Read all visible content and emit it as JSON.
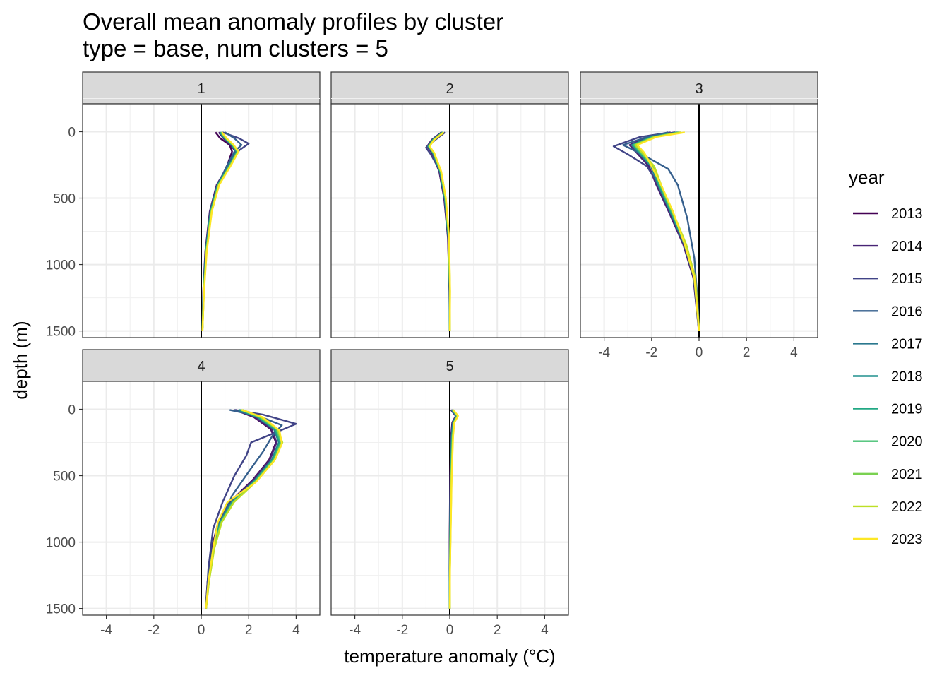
{
  "title": "Overall mean anomaly profiles by cluster",
  "subtitle": "type = base, num clusters = 5",
  "chart_data": {
    "type": "line",
    "title": "Overall mean anomaly profiles by cluster",
    "subtitle": "type = base, num clusters = 5",
    "xlabel": "temperature anomaly (°C)",
    "ylabel": "depth (m)",
    "xlim": [
      -5,
      5
    ],
    "ylim": [
      1550,
      -210
    ],
    "y_reversed": true,
    "x_ticks": [
      -4,
      -2,
      0,
      2,
      4
    ],
    "y_ticks": [
      0,
      500,
      1000,
      1500
    ],
    "grid": true,
    "reference_line_x": 0,
    "facets": [
      "1",
      "2",
      "3",
      "4",
      "5"
    ],
    "legend": {
      "title": "year",
      "position": "right",
      "items": [
        {
          "label": "2013",
          "color": "#440154"
        },
        {
          "label": "2014",
          "color": "#482475"
        },
        {
          "label": "2015",
          "color": "#414487"
        },
        {
          "label": "2016",
          "color": "#355f8d"
        },
        {
          "label": "2017",
          "color": "#2a788e"
        },
        {
          "label": "2018",
          "color": "#21908d"
        },
        {
          "label": "2019",
          "color": "#22a884"
        },
        {
          "label": "2020",
          "color": "#43bf71"
        },
        {
          "label": "2021",
          "color": "#7ad151"
        },
        {
          "label": "2022",
          "color": "#bddf26"
        },
        {
          "label": "2023",
          "color": "#fde725"
        }
      ]
    },
    "profiles": {
      "1": {
        "base": [
          [
            0.8,
            5
          ],
          [
            1.0,
            50
          ],
          [
            1.3,
            100
          ],
          [
            1.5,
            150
          ],
          [
            1.2,
            250
          ],
          [
            0.7,
            400
          ],
          [
            0.4,
            600
          ],
          [
            0.2,
            900
          ],
          [
            0.1,
            1200
          ],
          [
            0.05,
            1500
          ]
        ],
        "variants": {
          "2013": [
            [
              0.6,
              5
            ],
            [
              0.8,
              50
            ],
            [
              1.2,
              100
            ],
            [
              1.3,
              150
            ],
            [
              1.1,
              250
            ],
            [
              0.7,
              400
            ],
            [
              0.4,
              600
            ],
            [
              0.2,
              900
            ],
            [
              0.1,
              1200
            ],
            [
              0.05,
              1500
            ]
          ],
          "2015": [
            [
              0.9,
              5
            ],
            [
              1.6,
              50
            ],
            [
              2.0,
              90
            ],
            [
              1.6,
              140
            ],
            [
              1.2,
              250
            ],
            [
              0.7,
              400
            ],
            [
              0.4,
              600
            ],
            [
              0.2,
              900
            ],
            [
              0.1,
              1200
            ],
            [
              0.05,
              1500
            ]
          ],
          "2016": [
            [
              1.0,
              5
            ],
            [
              1.4,
              50
            ],
            [
              1.7,
              100
            ],
            [
              1.4,
              150
            ],
            [
              1.1,
              250
            ],
            [
              0.7,
              400
            ],
            [
              0.4,
              600
            ],
            [
              0.2,
              900
            ],
            [
              0.1,
              1200
            ],
            [
              0.05,
              1500
            ]
          ]
        }
      },
      "2": {
        "base": [
          [
            -0.3,
            5
          ],
          [
            -0.7,
            60
          ],
          [
            -0.9,
            110
          ],
          [
            -0.7,
            160
          ],
          [
            -0.4,
            300
          ],
          [
            -0.2,
            500
          ],
          [
            -0.05,
            800
          ],
          [
            0.0,
            1200
          ],
          [
            0.0,
            1500
          ]
        ],
        "variants": {
          "2015": [
            [
              -0.2,
              5
            ],
            [
              -0.6,
              60
            ],
            [
              -1.0,
              120
            ],
            [
              -0.8,
              170
            ],
            [
              -0.4,
              300
            ],
            [
              -0.2,
              500
            ],
            [
              -0.05,
              800
            ],
            [
              0.0,
              1200
            ],
            [
              0.0,
              1500
            ]
          ]
        }
      },
      "3": {
        "base": [
          [
            -0.9,
            5
          ],
          [
            -2.0,
            40
          ],
          [
            -2.8,
            100
          ],
          [
            -2.5,
            160
          ],
          [
            -2.0,
            260
          ],
          [
            -1.7,
            400
          ],
          [
            -1.2,
            600
          ],
          [
            -0.6,
            850
          ],
          [
            -0.2,
            1100
          ],
          [
            -0.05,
            1400
          ],
          [
            0.0,
            1500
          ]
        ],
        "variants": {
          "2013": [
            [
              -1.0,
              5
            ],
            [
              -2.1,
              40
            ],
            [
              -2.8,
              100
            ],
            [
              -2.5,
              160
            ],
            [
              -2.0,
              260
            ],
            [
              -1.6,
              450
            ],
            [
              -1.1,
              650
            ],
            [
              -0.6,
              850
            ],
            [
              -0.2,
              1100
            ],
            [
              -0.05,
              1400
            ],
            [
              0.0,
              1500
            ]
          ],
          "2015": [
            [
              -1.2,
              5
            ],
            [
              -2.5,
              40
            ],
            [
              -3.6,
              110
            ],
            [
              -3.0,
              170
            ],
            [
              -2.2,
              260
            ],
            [
              -1.7,
              400
            ],
            [
              -1.2,
              600
            ],
            [
              -0.6,
              850
            ],
            [
              -0.2,
              1100
            ],
            [
              -0.05,
              1400
            ],
            [
              0.0,
              1500
            ]
          ],
          "2016": [
            [
              -1.3,
              5
            ],
            [
              -2.2,
              40
            ],
            [
              -3.2,
              100
            ],
            [
              -2.4,
              170
            ],
            [
              -1.8,
              230
            ],
            [
              -1.3,
              280
            ],
            [
              -0.9,
              400
            ],
            [
              -0.5,
              650
            ],
            [
              -0.2,
              950
            ],
            [
              -0.05,
              1300
            ],
            [
              0.0,
              1500
            ]
          ],
          "2023": [
            [
              -0.6,
              5
            ],
            [
              -1.8,
              40
            ],
            [
              -2.6,
              100
            ],
            [
              -2.3,
              160
            ],
            [
              -2.0,
              260
            ],
            [
              -1.6,
              400
            ],
            [
              -1.1,
              600
            ],
            [
              -0.6,
              850
            ],
            [
              -0.2,
              1100
            ],
            [
              -0.05,
              1400
            ],
            [
              0.0,
              1500
            ]
          ]
        }
      },
      "4": {
        "base": [
          [
            1.6,
            5
          ],
          [
            2.4,
            60
          ],
          [
            3.1,
            150
          ],
          [
            3.3,
            250
          ],
          [
            3.0,
            380
          ],
          [
            2.3,
            530
          ],
          [
            1.3,
            700
          ],
          [
            0.8,
            850
          ],
          [
            0.5,
            1050
          ],
          [
            0.3,
            1300
          ],
          [
            0.2,
            1500
          ]
        ],
        "variants": {
          "2015": [
            [
              1.4,
              5
            ],
            [
              2.6,
              40
            ],
            [
              4.0,
              110
            ],
            [
              3.2,
              170
            ],
            [
              2.1,
              250
            ],
            [
              1.9,
              350
            ],
            [
              1.4,
              500
            ],
            [
              0.9,
              700
            ],
            [
              0.5,
              900
            ],
            [
              0.3,
              1200
            ],
            [
              0.2,
              1500
            ]
          ],
          "2016": [
            [
              1.2,
              5
            ],
            [
              2.4,
              50
            ],
            [
              3.4,
              120
            ],
            [
              3.0,
              200
            ],
            [
              2.6,
              320
            ],
            [
              2.0,
              470
            ],
            [
              1.3,
              650
            ],
            [
              0.8,
              850
            ],
            [
              0.5,
              1050
            ],
            [
              0.3,
              1300
            ],
            [
              0.2,
              1500
            ]
          ],
          "2023": [
            [
              1.7,
              5
            ],
            [
              2.6,
              60
            ],
            [
              3.3,
              160
            ],
            [
              3.4,
              260
            ],
            [
              3.1,
              380
            ],
            [
              2.3,
              550
            ],
            [
              1.1,
              700
            ],
            [
              0.7,
              850
            ],
            [
              0.5,
              1050
            ],
            [
              0.3,
              1300
            ],
            [
              0.2,
              1500
            ]
          ]
        }
      },
      "5": {
        "base": [
          [
            0.1,
            5
          ],
          [
            0.3,
            50
          ],
          [
            0.15,
            100
          ],
          [
            0.1,
            200
          ],
          [
            0.05,
            500
          ],
          [
            0.02,
            900
          ],
          [
            0.0,
            1200
          ],
          [
            0.0,
            1500
          ]
        ],
        "variants": {}
      }
    }
  }
}
